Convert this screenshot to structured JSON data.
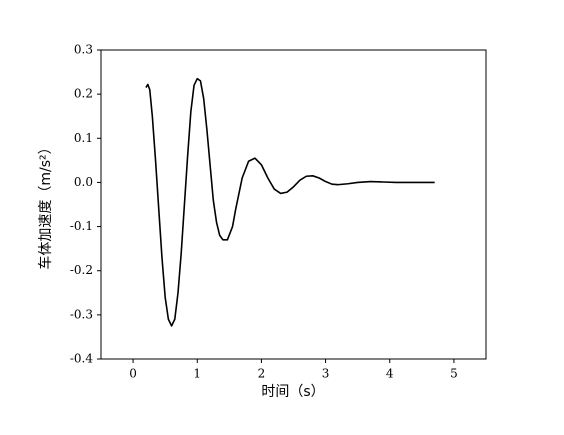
{
  "chart_data": {
    "type": "line",
    "x_label": "时间（s）",
    "y_label": "车体加速度（m/s²）",
    "x": [
      0.2,
      0.23,
      0.26,
      0.3,
      0.35,
      0.4,
      0.45,
      0.5,
      0.55,
      0.6,
      0.65,
      0.7,
      0.75,
      0.8,
      0.85,
      0.9,
      0.95,
      1.0,
      1.05,
      1.1,
      1.15,
      1.2,
      1.25,
      1.3,
      1.35,
      1.4,
      1.47,
      1.55,
      1.6,
      1.7,
      1.8,
      1.9,
      2.0,
      2.1,
      2.2,
      2.3,
      2.4,
      2.5,
      2.6,
      2.7,
      2.8,
      2.9,
      3.0,
      3.1,
      3.2,
      3.35,
      3.5,
      3.7,
      3.9,
      4.1,
      4.4,
      4.7
    ],
    "series": [
      {
        "color": "#000000",
        "values": [
          0.215,
          0.222,
          0.21,
          0.15,
          0.05,
          -0.06,
          -0.17,
          -0.26,
          -0.31,
          -0.325,
          -0.31,
          -0.25,
          -0.16,
          -0.05,
          0.06,
          0.16,
          0.22,
          0.235,
          0.23,
          0.19,
          0.12,
          0.04,
          -0.04,
          -0.09,
          -0.12,
          -0.13,
          -0.13,
          -0.1,
          -0.06,
          0.01,
          0.048,
          0.055,
          0.04,
          0.01,
          -0.015,
          -0.025,
          -0.022,
          -0.01,
          0.005,
          0.014,
          0.015,
          0.01,
          0.002,
          -0.004,
          -0.005,
          -0.003,
          0.0,
          0.002,
          0.001,
          0,
          0,
          0
        ]
      }
    ],
    "xlim": [
      -0.5,
      5.5
    ],
    "xticks": [
      0,
      1,
      2,
      3,
      4,
      5
    ],
    "ylim": [
      -0.4,
      0.3
    ],
    "yticks": [
      -0.4,
      -0.3,
      -0.2,
      -0.1,
      {
        "value": 0,
        "label": "0.0"
      },
      0.1,
      0.2,
      0.3
    ]
  }
}
